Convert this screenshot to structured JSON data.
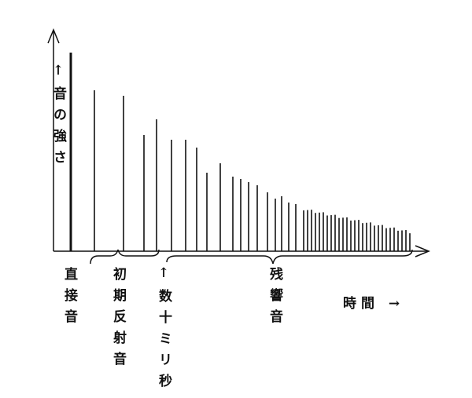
{
  "y_label": "↑音の強さ",
  "labels": {
    "direct": "直接音",
    "early": "初期反射音",
    "delay": "↑数十ミリ秒",
    "reverb": "残響音",
    "time": "時間 →"
  }
}
